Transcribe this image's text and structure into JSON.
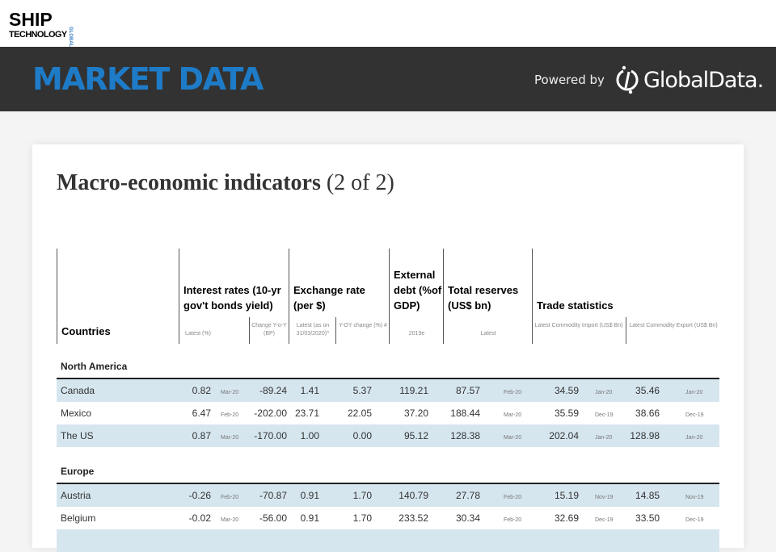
{
  "brand": {
    "logo_top": "SHIP",
    "logo_bottom": "TECHNOLOGY",
    "logo_side": "GLOBAL"
  },
  "banner": {
    "title": "MARKET DATA",
    "powered_by": "Powered by",
    "partner": "GlobalData."
  },
  "page": {
    "title": "Macro-economic indicators",
    "title_suffix": "(2 of 2)"
  },
  "headers": {
    "countries": "Countries",
    "interest": "Interest rates (10-yr gov't bonds yield)",
    "interest_latest": "Latest (%)",
    "interest_change": "Change Y-o-Y (BP)",
    "exchange": "Exchange rate (per $)",
    "exchange_latest": "Latest (as on 31/03/2020)^",
    "exchange_yoy": "Y-OY change (%) #",
    "debt": "External debt (%of GDP)",
    "debt_sub": "2019e",
    "reserves": "Total reserves (US$ bn)",
    "reserves_sub": "Latest",
    "trade": "Trade statistics",
    "trade_import": "Latest Commodity Import (US$ Bn)",
    "trade_export": "Latest Commodity Export (US$ Bn)"
  },
  "sections": [
    {
      "name": "North America",
      "rows": [
        {
          "country": "Canada",
          "ir": "0.82",
          "ir_date": "Mar-20",
          "ir_chg": "-89.24",
          "fx": "1.41",
          "fx_yoy": "5.37",
          "debt": "119.21",
          "res": "87.57",
          "res_date": "Feb-20",
          "imp": "34.59",
          "imp_date": "Jan-20",
          "exp": "35.46",
          "exp_date": "Jan-20"
        },
        {
          "country": "Mexico",
          "ir": "6.47",
          "ir_date": "Feb-20",
          "ir_chg": "-202.00",
          "fx": "23.71",
          "fx_yoy": "22.05",
          "debt": "37.20",
          "res": "188.44",
          "res_date": "Mar-20",
          "imp": "35.59",
          "imp_date": "Dec-19",
          "exp": "38.66",
          "exp_date": "Dec-19"
        },
        {
          "country": "The US",
          "ir": "0.87",
          "ir_date": "Mar-20",
          "ir_chg": "-170.00",
          "fx": "1.00",
          "fx_yoy": "0.00",
          "debt": "95.12",
          "res": "128.38",
          "res_date": "Mar-20",
          "imp": "202.04",
          "imp_date": "Jan-20",
          "exp": "128.98",
          "exp_date": "Jan-20"
        }
      ]
    },
    {
      "name": "Europe",
      "rows": [
        {
          "country": "Austria",
          "ir": "-0.26",
          "ir_date": "Feb-20",
          "ir_chg": "-70.87",
          "fx": "0.91",
          "fx_yoy": "1.70",
          "debt": "140.79",
          "res": "27.78",
          "res_date": "Feb-20",
          "imp": "15.19",
          "imp_date": "Nov-19",
          "exp": "14.85",
          "exp_date": "Nov-19"
        },
        {
          "country": "Belgium",
          "ir": "-0.02",
          "ir_date": "Mar-20",
          "ir_chg": "-56.00",
          "fx": "0.91",
          "fx_yoy": "1.70",
          "debt": "233.52",
          "res": "30.34",
          "res_date": "Feb-20",
          "imp": "32.69",
          "imp_date": "Dec-19",
          "exp": "33.50",
          "exp_date": "Dec-19"
        }
      ]
    }
  ],
  "colors": {
    "banner_bg": "#323232",
    "accent": "#1e7bc7",
    "row_alt": "#d6e6ef"
  }
}
